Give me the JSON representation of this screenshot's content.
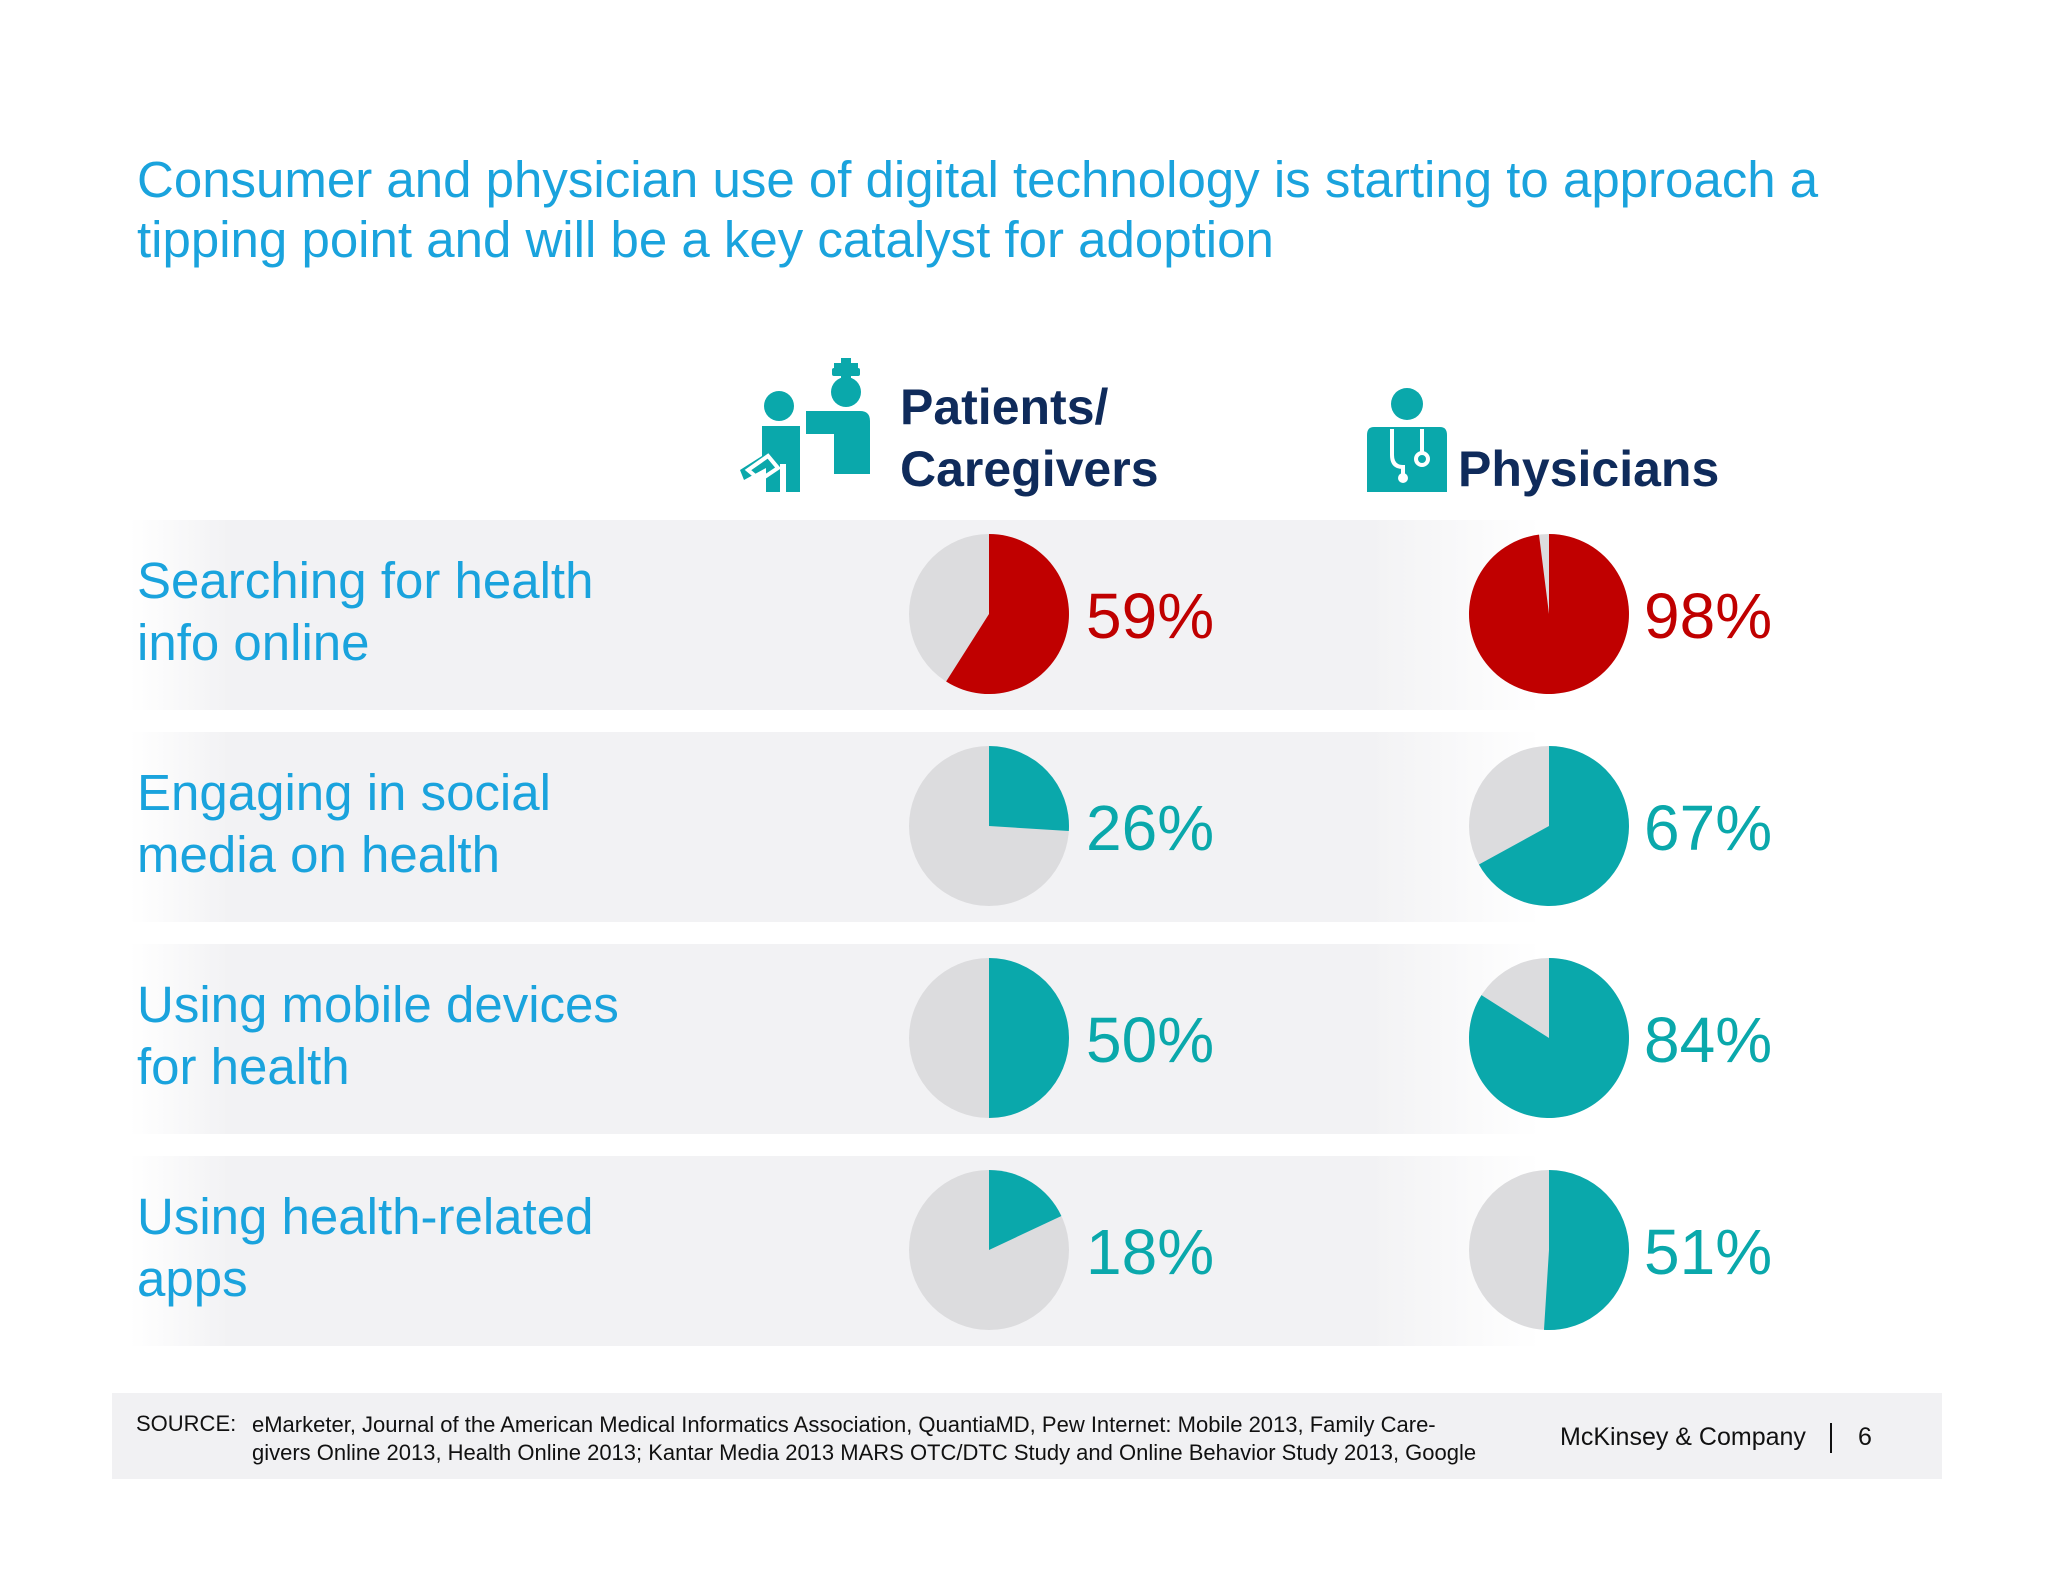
{
  "title_lines": [
    "Consumer and physician use of digital technology is starting to approach a",
    "tipping point and will be a key catalyst for adoption"
  ],
  "columns": {
    "patients": {
      "lines": [
        "Patients/",
        "Caregivers"
      ],
      "icon": "nurse-and-patient-icon"
    },
    "physicians": {
      "lines": [
        "Physicians"
      ],
      "icon": "doctor-with-stethoscope-icon"
    }
  },
  "colors": {
    "highlight": "#c00000",
    "teal": "#0aa8ab",
    "remainder": "#dcdcde",
    "title": "#1aa3dd",
    "header": "#0f2b5b"
  },
  "chart_data": {
    "type": "pie",
    "title": "Consumer and physician use of digital technology is starting to approach a tipping point and will be a key catalyst for adoption",
    "series_names": [
      "Patients/Caregivers",
      "Physicians"
    ],
    "rows": [
      {
        "label_lines": [
          "Searching for health",
          "info online"
        ],
        "patients": 59,
        "physicians": 98,
        "patients_label": "59%",
        "physicians_label": "98%",
        "highlight": true
      },
      {
        "label_lines": [
          "Engaging in social",
          "media on health"
        ],
        "patients": 26,
        "physicians": 67,
        "patients_label": "26%",
        "physicians_label": "67%",
        "highlight": false
      },
      {
        "label_lines": [
          "Using mobile devices",
          "for health"
        ],
        "patients": 50,
        "physicians": 84,
        "patients_label": "50%",
        "physicians_label": "84%",
        "highlight": false
      },
      {
        "label_lines": [
          "Using health-related",
          "apps"
        ],
        "patients": 18,
        "physicians": 51,
        "patients_label": "18%",
        "physicians_label": "51%",
        "highlight": false
      }
    ]
  },
  "footer": {
    "source_label": "SOURCE:",
    "source_lines": [
      "eMarketer, Journal of the American Medical Informatics Association, QuantiaMD, Pew Internet: Mobile 2013, Family Care-",
      "givers Online 2013, Health Online 2013; Kantar Media 2013 MARS OTC/DTC Study and Online Behavior Study 2013, Google"
    ],
    "brand": "McKinsey & Company",
    "page_number": "6"
  }
}
